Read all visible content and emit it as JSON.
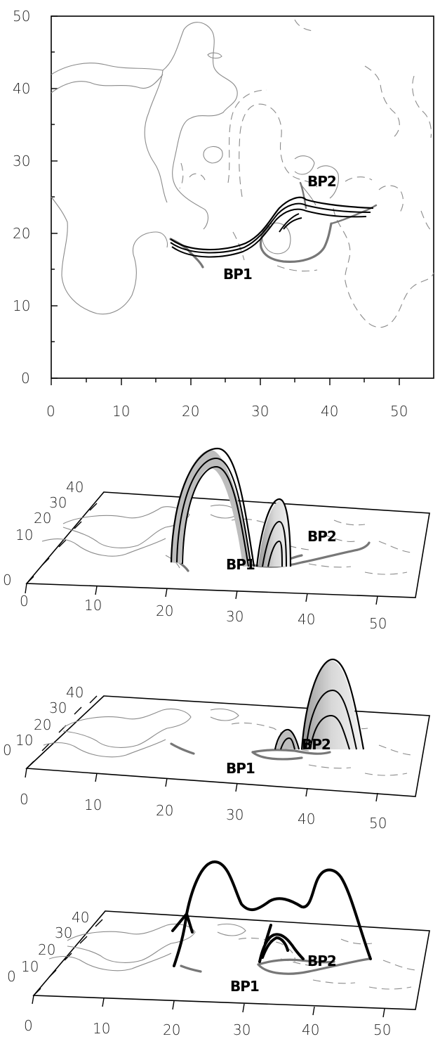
{
  "panel1": {
    "y_ticks": [
      "0",
      "10",
      "20",
      "30",
      "40",
      "50"
    ],
    "x_ticks": [
      "0",
      "10",
      "20",
      "30",
      "40",
      "50"
    ],
    "labels": {
      "bp1": "BP1",
      "bp2": "BP2"
    }
  },
  "panel2": {
    "y_ticks": [
      "0",
      "10",
      "20",
      "30",
      "40"
    ],
    "x_ticks": [
      "0",
      "10",
      "20",
      "30",
      "40",
      "50"
    ],
    "labels": {
      "bp1": "BP1",
      "bp2": "BP2"
    }
  },
  "panel3": {
    "y_ticks": [
      "0",
      "10",
      "20",
      "30",
      "40"
    ],
    "x_ticks": [
      "0",
      "10",
      "20",
      "30",
      "40",
      "50"
    ],
    "labels": {
      "bp1": "BP1",
      "bp2": "BP2"
    }
  },
  "panel4": {
    "y_ticks": [
      "0",
      "10",
      "20",
      "30",
      "40"
    ],
    "x_ticks": [
      "0",
      "10",
      "20",
      "30",
      "40",
      "50"
    ],
    "labels": {
      "bp1": "BP1",
      "bp2": "BP2"
    }
  },
  "colors": {
    "contour": "#8a8a8a",
    "footpoint": "#777777",
    "loop": "#000000",
    "loop_fill": "#bdbdbd"
  }
}
